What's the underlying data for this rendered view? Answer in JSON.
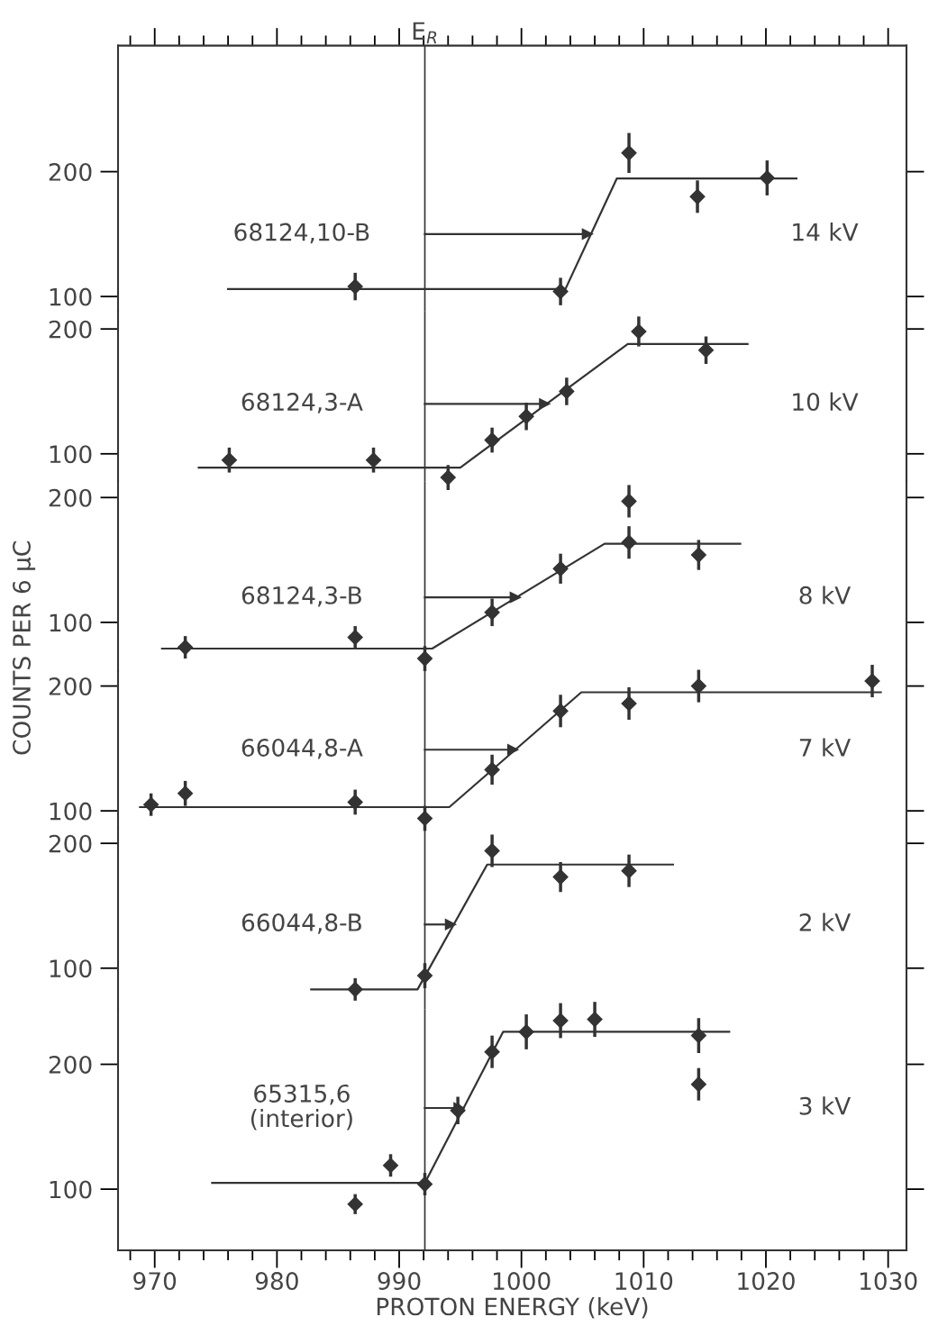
{
  "chart_data": [
    {
      "type": "scatter",
      "xlim": [
        967,
        1031.5
      ],
      "ylim": [
        88,
        301
      ],
      "yticks": [
        100,
        200
      ],
      "tick_labels": "y",
      "xticks": [
        {
          "value": 968,
          "label": null
        },
        970,
        {
          "value": 972,
          "label": null
        },
        {
          "value": 974,
          "label": null
        },
        {
          "value": 976,
          "label": null
        },
        {
          "value": 978,
          "label": null
        },
        980,
        {
          "value": 982,
          "label": null
        },
        {
          "value": 984,
          "label": null
        },
        {
          "value": 986,
          "label": null
        },
        {
          "value": 988,
          "label": null
        },
        990,
        {
          "value": 992,
          "label": null
        },
        {
          "value": 994,
          "label": null
        },
        {
          "value": 996,
          "label": null
        },
        {
          "value": 998,
          "label": null
        },
        1000,
        {
          "value": 1002,
          "label": null
        },
        {
          "value": 1004,
          "label": null
        },
        {
          "value": 1006,
          "label": null
        },
        {
          "value": 1008,
          "label": null
        },
        1010,
        {
          "value": 1012,
          "label": null
        },
        {
          "value": 1014,
          "label": null
        },
        {
          "value": 1016,
          "label": null
        },
        {
          "value": 1018,
          "label": null
        },
        1020,
        {
          "value": 1022,
          "label": null
        },
        {
          "value": 1024,
          "label": null
        },
        {
          "value": 1026,
          "label": null
        },
        {
          "value": 1028,
          "label": null
        },
        1030
      ],
      "ref_lines": [
        {
          "axis": "x",
          "value": 992.1,
          "label": "E$_{R}$",
          "color": "#333333"
        }
      ],
      "annotations": [
        "68124,10-B",
        "14 kV"
      ],
      "series": [
        {
          "color": "#333333",
          "marker": "diamond",
          "x": [
            986.4,
            1003.2,
            1008.8,
            1014.4,
            1020.1
          ],
          "values": [
            108,
            104,
            215,
            180,
            195
          ],
          "errors": [
            11,
            11,
            16,
            13,
            14
          ]
        },
        {
          "type": "line",
          "color": "#333333",
          "x": [
            976.0,
            1003.6,
            1007.8,
            1022.5
          ],
          "values": [
            106,
            106,
            194.5,
            194.5
          ]
        },
        {
          "type": "line",
          "color": "#333333",
          "marker": "triangle",
          "x": [
            992.1,
            1005.4
          ],
          "values": [
            150,
            150
          ]
        }
      ]
    },
    {
      "type": "scatter",
      "xlim": [
        967,
        1031.5
      ],
      "ylim": [
        78,
        214
      ],
      "yticks": [
        100,
        200
      ],
      "tick_labels": "y",
      "ref_lines": [
        {
          "axis": "x",
          "value": 992.1,
          "color": "#333333"
        }
      ],
      "annotations": [
        "68124,3-A",
        "10 kV"
      ],
      "series": [
        {
          "color": "#333333",
          "marker": "diamond",
          "x": [
            976.1,
            987.9,
            994.0,
            997.6,
            1000.4,
            1003.7,
            1009.6,
            1015.1
          ],
          "values": [
            95,
            95,
            81,
            111,
            130,
            150,
            198,
            183
          ],
          "errors": [
            10,
            10,
            10,
            10,
            11,
            11,
            12,
            11
          ]
        },
        {
          "type": "line",
          "color": "#333333",
          "x": [
            973.6,
            995.0,
            1008.7,
            1018.5
          ],
          "values": [
            89,
            89,
            188,
            188
          ]
        },
        {
          "type": "line",
          "color": "#333333",
          "marker": "triangle",
          "x": [
            992.1,
            1001.9
          ],
          "values": [
            140,
            140
          ]
        }
      ]
    },
    {
      "type": "scatter",
      "xlim": [
        967,
        1031.5
      ],
      "ylim": [
        61,
        213
      ],
      "yticks": [
        100,
        200
      ],
      "tick_labels": "y",
      "ref_lines": [
        {
          "axis": "x",
          "value": 992.1,
          "color": "#333333"
        }
      ],
      "ylabel": "COUNTS PER 6 μC",
      "annotations": [
        "68124,3-B",
        "8 kV"
      ],
      "series": [
        {
          "color": "#333333",
          "marker": "diamond",
          "x": [
            972.5,
            986.4,
            992.1,
            997.6,
            1003.2,
            1008.8,
            1008.8,
            1014.5
          ],
          "values": [
            80,
            88,
            71,
            108,
            143,
            164,
            197,
            154
          ],
          "errors": [
            9,
            9,
            10,
            11,
            12,
            13,
            13,
            12
          ]
        },
        {
          "type": "line",
          "color": "#333333",
          "x": [
            970.6,
            992.7,
            1006.8,
            1017.9
          ],
          "values": [
            79,
            79,
            163,
            163
          ]
        },
        {
          "type": "line",
          "color": "#333333",
          "marker": "triangle",
          "x": [
            992.1,
            999.5
          ],
          "values": [
            120,
            120
          ]
        }
      ]
    },
    {
      "type": "scatter",
      "xlim": [
        967,
        1031.5
      ],
      "ylim": [
        86,
        212
      ],
      "yticks": [
        100,
        200
      ],
      "tick_labels": "y",
      "ref_lines": [
        {
          "axis": "x",
          "value": 992.1,
          "color": "#333333"
        }
      ],
      "annotations": [
        "66044,8-A",
        "7 kV"
      ],
      "series": [
        {
          "color": "#333333",
          "marker": "diamond",
          "x": [
            969.7,
            972.5,
            986.4,
            992.1,
            997.6,
            1003.2,
            1008.8,
            1014.5,
            1028.7
          ],
          "values": [
            105,
            114,
            107,
            94,
            133,
            180,
            186,
            200,
            204
          ],
          "errors": [
            9,
            10,
            10,
            10,
            12,
            13,
            13,
            13,
            13
          ]
        },
        {
          "type": "line",
          "color": "#333333",
          "x": [
            968.8,
            994.1,
            1004.9,
            1029.4
          ],
          "values": [
            103,
            103,
            195,
            195
          ]
        },
        {
          "type": "line",
          "color": "#333333",
          "marker": "triangle",
          "x": [
            992.1,
            999.3
          ],
          "values": [
            149,
            149
          ]
        }
      ]
    },
    {
      "type": "scatter",
      "xlim": [
        967,
        1031.5
      ],
      "ylim": [
        67,
        212
      ],
      "yticks": [
        100,
        200
      ],
      "tick_labels": "y",
      "ref_lines": [
        {
          "axis": "x",
          "value": 992.1,
          "color": "#333333"
        }
      ],
      "annotations": [
        "66044,8-B",
        "2 kV"
      ],
      "series": [
        {
          "color": "#333333",
          "marker": "diamond",
          "x": [
            986.4,
            992.1,
            997.6,
            1003.2,
            1008.8
          ],
          "values": [
            83,
            94,
            194,
            173,
            178
          ],
          "errors": [
            9,
            10,
            13,
            12,
            13
          ]
        },
        {
          "type": "line",
          "color": "#333333",
          "x": [
            982.8,
            991.5,
            997.2,
            1012.4
          ],
          "values": [
            83,
            83,
            183,
            183
          ]
        },
        {
          "type": "line",
          "color": "#333333",
          "marker": "triangle",
          "x": [
            992.1,
            994.2
          ],
          "values": [
            135,
            135
          ]
        }
      ]
    },
    {
      "type": "scatter",
      "xlim": [
        967,
        1031.5
      ],
      "ylim": [
        51,
        244
      ],
      "yticks": [
        100,
        200
      ],
      "xticks": [
        {
          "value": 968,
          "label": null
        },
        970,
        {
          "value": 972,
          "label": null
        },
        {
          "value": 974,
          "label": null
        },
        {
          "value": 976,
          "label": null
        },
        {
          "value": 978,
          "label": null
        },
        980,
        {
          "value": 982,
          "label": null
        },
        {
          "value": 984,
          "label": null
        },
        {
          "value": 986,
          "label": null
        },
        {
          "value": 988,
          "label": null
        },
        990,
        {
          "value": 992,
          "label": null
        },
        {
          "value": 994,
          "label": null
        },
        {
          "value": 996,
          "label": null
        },
        {
          "value": 998,
          "label": null
        },
        1000,
        {
          "value": 1002,
          "label": null
        },
        {
          "value": 1004,
          "label": null
        },
        {
          "value": 1006,
          "label": null
        },
        {
          "value": 1008,
          "label": null
        },
        1010,
        {
          "value": 1012,
          "label": null
        },
        {
          "value": 1014,
          "label": null
        },
        {
          "value": 1016,
          "label": null
        },
        {
          "value": 1018,
          "label": null
        },
        1020,
        {
          "value": 1022,
          "label": null
        },
        {
          "value": 1024,
          "label": null
        },
        {
          "value": 1026,
          "label": null
        },
        {
          "value": 1028,
          "label": null
        },
        1030
      ],
      "ref_lines": [
        {
          "axis": "x",
          "value": 992.1,
          "color": "#333333"
        }
      ],
      "xlabel": "PROTON ENERGY (keV)",
      "annotations": [
        "65315,6\n(interior)",
        "3 kV"
      ],
      "series": [
        {
          "color": "#333333",
          "marker": "diamond",
          "x": [
            986.4,
            989.3,
            992.1,
            994.8,
            997.6,
            1000.4,
            1003.2,
            1006.0,
            1014.5,
            1014.5
          ],
          "values": [
            88,
            119,
            104,
            163,
            210,
            226,
            235,
            236,
            223,
            184
          ],
          "errors": [
            8,
            9,
            9,
            11,
            13,
            14,
            14,
            14,
            14,
            13
          ]
        },
        {
          "type": "line",
          "color": "#333333",
          "x": [
            974.7,
            992.1,
            998.5,
            1017.0
          ],
          "values": [
            105,
            105,
            226,
            226
          ]
        },
        {
          "type": "line",
          "color": "#333333",
          "marker": "triangle",
          "x": [
            992.1,
            994.9
          ],
          "values": [
            165,
            165
          ]
        }
      ]
    }
  ]
}
